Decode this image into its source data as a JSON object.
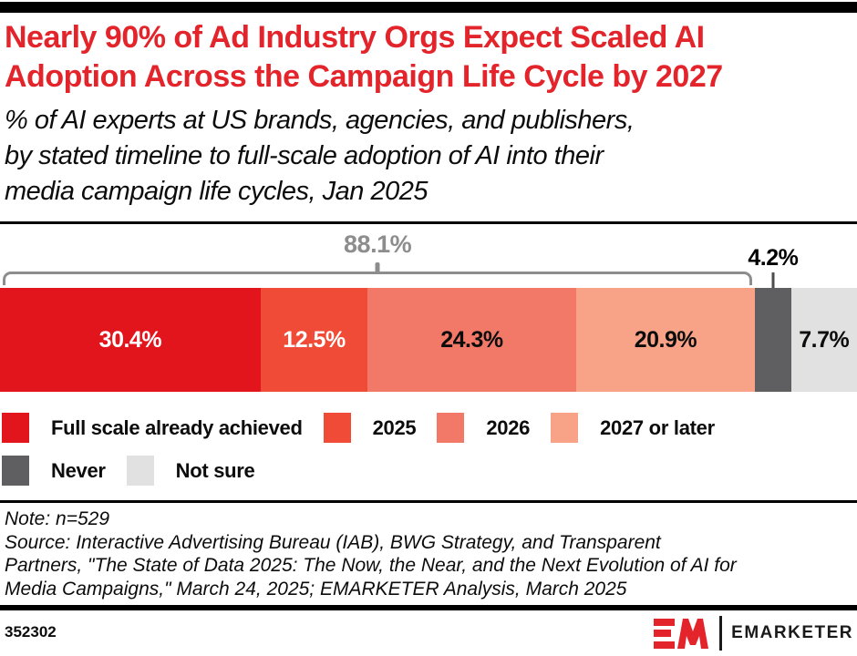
{
  "header": {
    "title_lines": [
      "Nearly 90% of Ad Industry Orgs Expect Scaled AI",
      "Adoption Across the Campaign Life Cycle by 2027"
    ],
    "subtitle_lines": [
      "% of AI experts at US brands, agencies, and publishers,",
      "by stated timeline to full-scale adoption of AI into their",
      "media campaign life cycles, Jan 2025"
    ]
  },
  "chart_data": {
    "type": "bar",
    "subtype": "horizontal-stacked-100pct",
    "title": "Nearly 90% of Ad Industry Orgs Expect Scaled AI Adoption Across the Campaign Life Cycle by 2027",
    "subtitle": "% of AI experts at US brands, agencies, and publishers, by stated timeline to full-scale adoption of AI into their media campaign life cycles, Jan 2025",
    "categories": [
      "Full scale already achieved",
      "2025",
      "2026",
      "2027 or later",
      "Never",
      "Not sure"
    ],
    "values": [
      30.4,
      12.5,
      24.3,
      20.9,
      4.2,
      7.7
    ],
    "segment_labels": [
      "30.4%",
      "12.5%",
      "24.3%",
      "20.9%",
      "",
      "7.7%"
    ],
    "colors": [
      "#e2151c",
      "#ef4b37",
      "#f27968",
      "#f8a288",
      "#5f5f61",
      "#e1e1e1"
    ],
    "label_on_dark": [
      true,
      true,
      false,
      false,
      false,
      false
    ],
    "annotations": {
      "bracket": {
        "text": "88.1%",
        "covers": [
          "Full scale already achieved",
          "2025",
          "2026",
          "2027 or later"
        ],
        "span_pct": 88.1,
        "color": "#8d8d8d"
      },
      "callout": {
        "text": "4.2%",
        "points_to": "Never"
      }
    },
    "legend_rows": [
      [
        0,
        1,
        2,
        3
      ],
      [
        4,
        5
      ]
    ],
    "xlim": [
      0,
      100
    ],
    "grid": false,
    "legend_position": "below"
  },
  "legend": {
    "items": [
      {
        "label": "Full scale already achieved"
      },
      {
        "label": "2025"
      },
      {
        "label": "2026"
      },
      {
        "label": "2027 or later"
      },
      {
        "label": "Never"
      },
      {
        "label": "Not sure"
      }
    ]
  },
  "notes": {
    "lines": [
      "Note: n=529",
      "Source: Interactive Advertising Bureau (IAB), BWG Strategy, and Transparent",
      "Partners, \"The State of Data 2025: The Now, the Near, and the Next Evolution of AI for",
      "Media Campaigns,\" March 24, 2025; EMARKETER Analysis, March 2025"
    ]
  },
  "footer": {
    "chart_id": "352302",
    "brand_name": "EMARKETER",
    "brand_red": "#e3242b"
  }
}
